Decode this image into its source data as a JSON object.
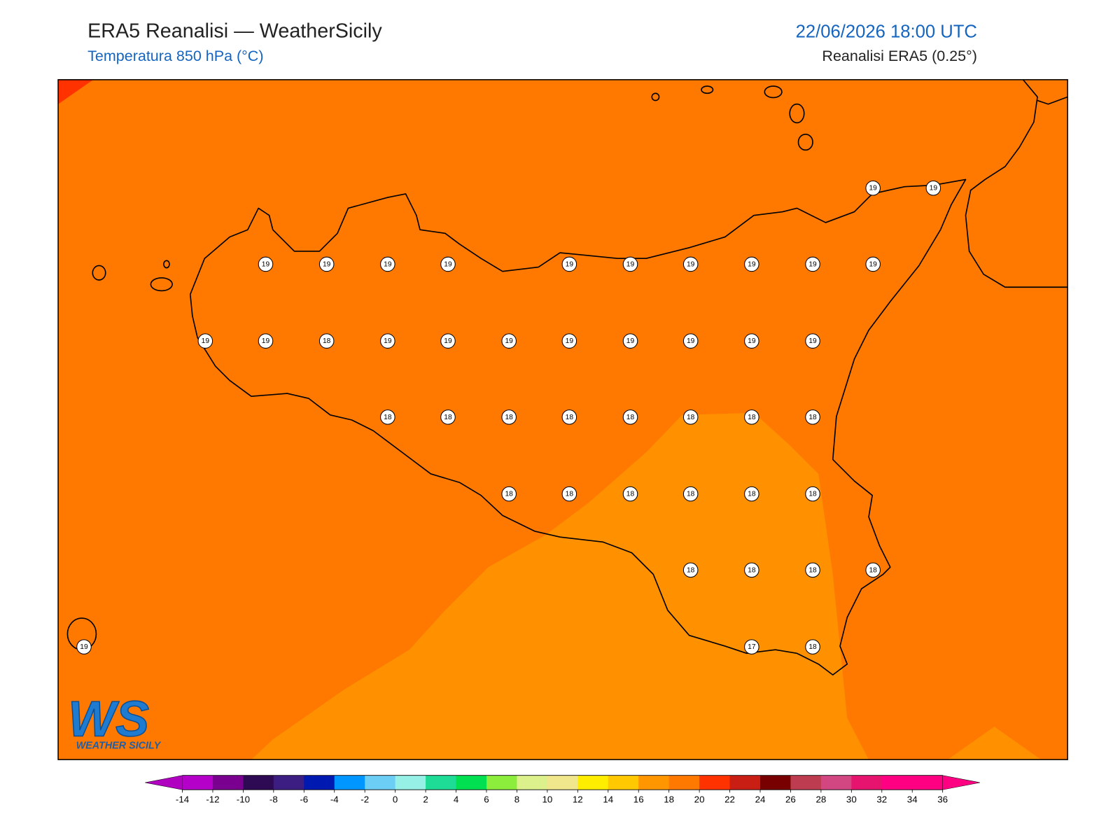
{
  "header": {
    "title": "ERA5 Reanalisi — WeatherSicily",
    "subtitle": "Temperatura 850 hPa (°C)",
    "datetime": "22/06/2026 18:00 UTC",
    "model": "Reanalisi ERA5 (0.25°)"
  },
  "logo": {
    "mark": "WS",
    "text": "WEATHER SICILY"
  },
  "stations": {
    "values": [
      19,
      19,
      19,
      19,
      19,
      19,
      19,
      19,
      19,
      19,
      19,
      19,
      19,
      19,
      18,
      19,
      19,
      19,
      19,
      19,
      19,
      19,
      19,
      18,
      18,
      18,
      18,
      18,
      18,
      18,
      18,
      18,
      18,
      18,
      18,
      18,
      18,
      18,
      18,
      18,
      18,
      19,
      17,
      18
    ]
  },
  "colorbar": {
    "ticks": [
      -14,
      -12,
      -10,
      -8,
      -6,
      -4,
      -2,
      0,
      2,
      4,
      6,
      8,
      10,
      12,
      14,
      16,
      18,
      20,
      22,
      24,
      26,
      28,
      30,
      32,
      34,
      36
    ],
    "colors": [
      "#b400c8",
      "#7a0090",
      "#2e0a55",
      "#3c1e82",
      "#0019b0",
      "#0096ff",
      "#6ccdf5",
      "#96f0e6",
      "#1edc96",
      "#00e050",
      "#8ced3c",
      "#dcf08c",
      "#f0e68c",
      "#ffed00",
      "#ffc800",
      "#ff9600",
      "#ff7800",
      "#ff3200",
      "#c81e14",
      "#780000",
      "#be3c50",
      "#d24682",
      "#e6146e",
      "#ff0082",
      "#ff0082"
    ],
    "under_color": "#b000c0",
    "over_color": "#ff0082"
  }
}
